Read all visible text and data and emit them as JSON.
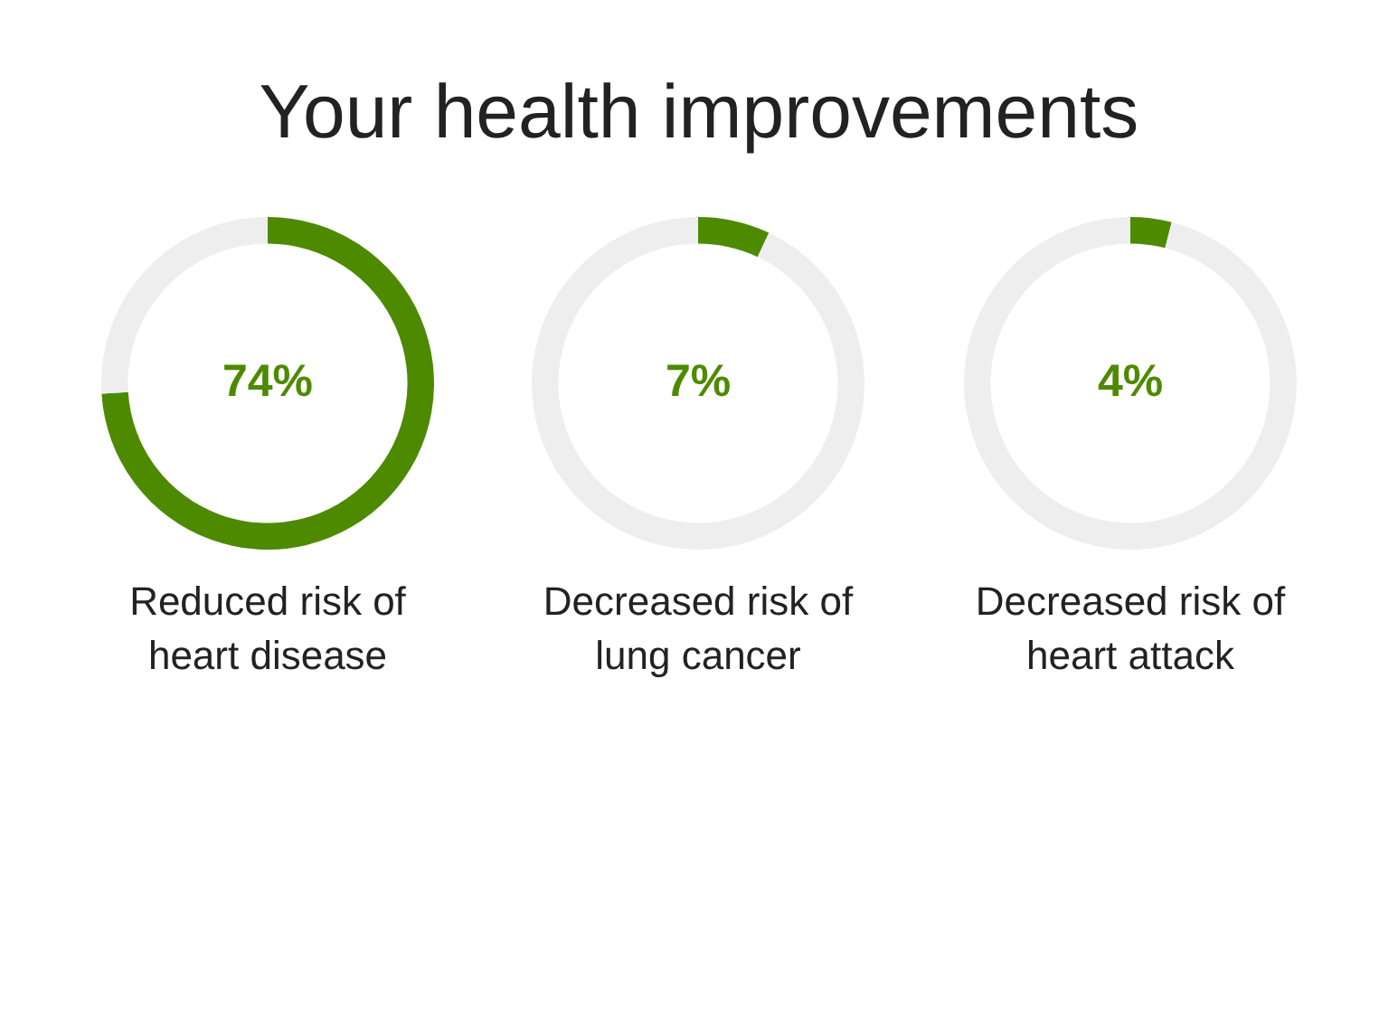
{
  "chart_data": [
    {
      "type": "donut",
      "title": "Your health improvements",
      "categories": [
        null,
        null
      ],
      "values": [
        74,
        26
      ],
      "colors": [
        "#4e8a00",
        "#eeeeee"
      ],
      "value_labels": [
        "74%",
        null
      ],
      "annotations": [
        "Reduced risk of heart disease"
      ]
    },
    {
      "type": "donut",
      "categories": [
        null,
        null
      ],
      "values": [
        7,
        93
      ],
      "colors": [
        "#4e8a00",
        "#eeeeee"
      ],
      "value_labels": [
        "7%",
        null
      ],
      "annotations": [
        "Decreased risk of lung cancer"
      ]
    },
    {
      "type": "donut",
      "categories": [
        null,
        null
      ],
      "values": [
        4,
        96
      ],
      "colors": [
        "#4e8a00",
        "#eeeeee"
      ],
      "value_labels": [
        "4%",
        null
      ],
      "annotations": [
        "Decreased risk of heart attack"
      ]
    }
  ]
}
